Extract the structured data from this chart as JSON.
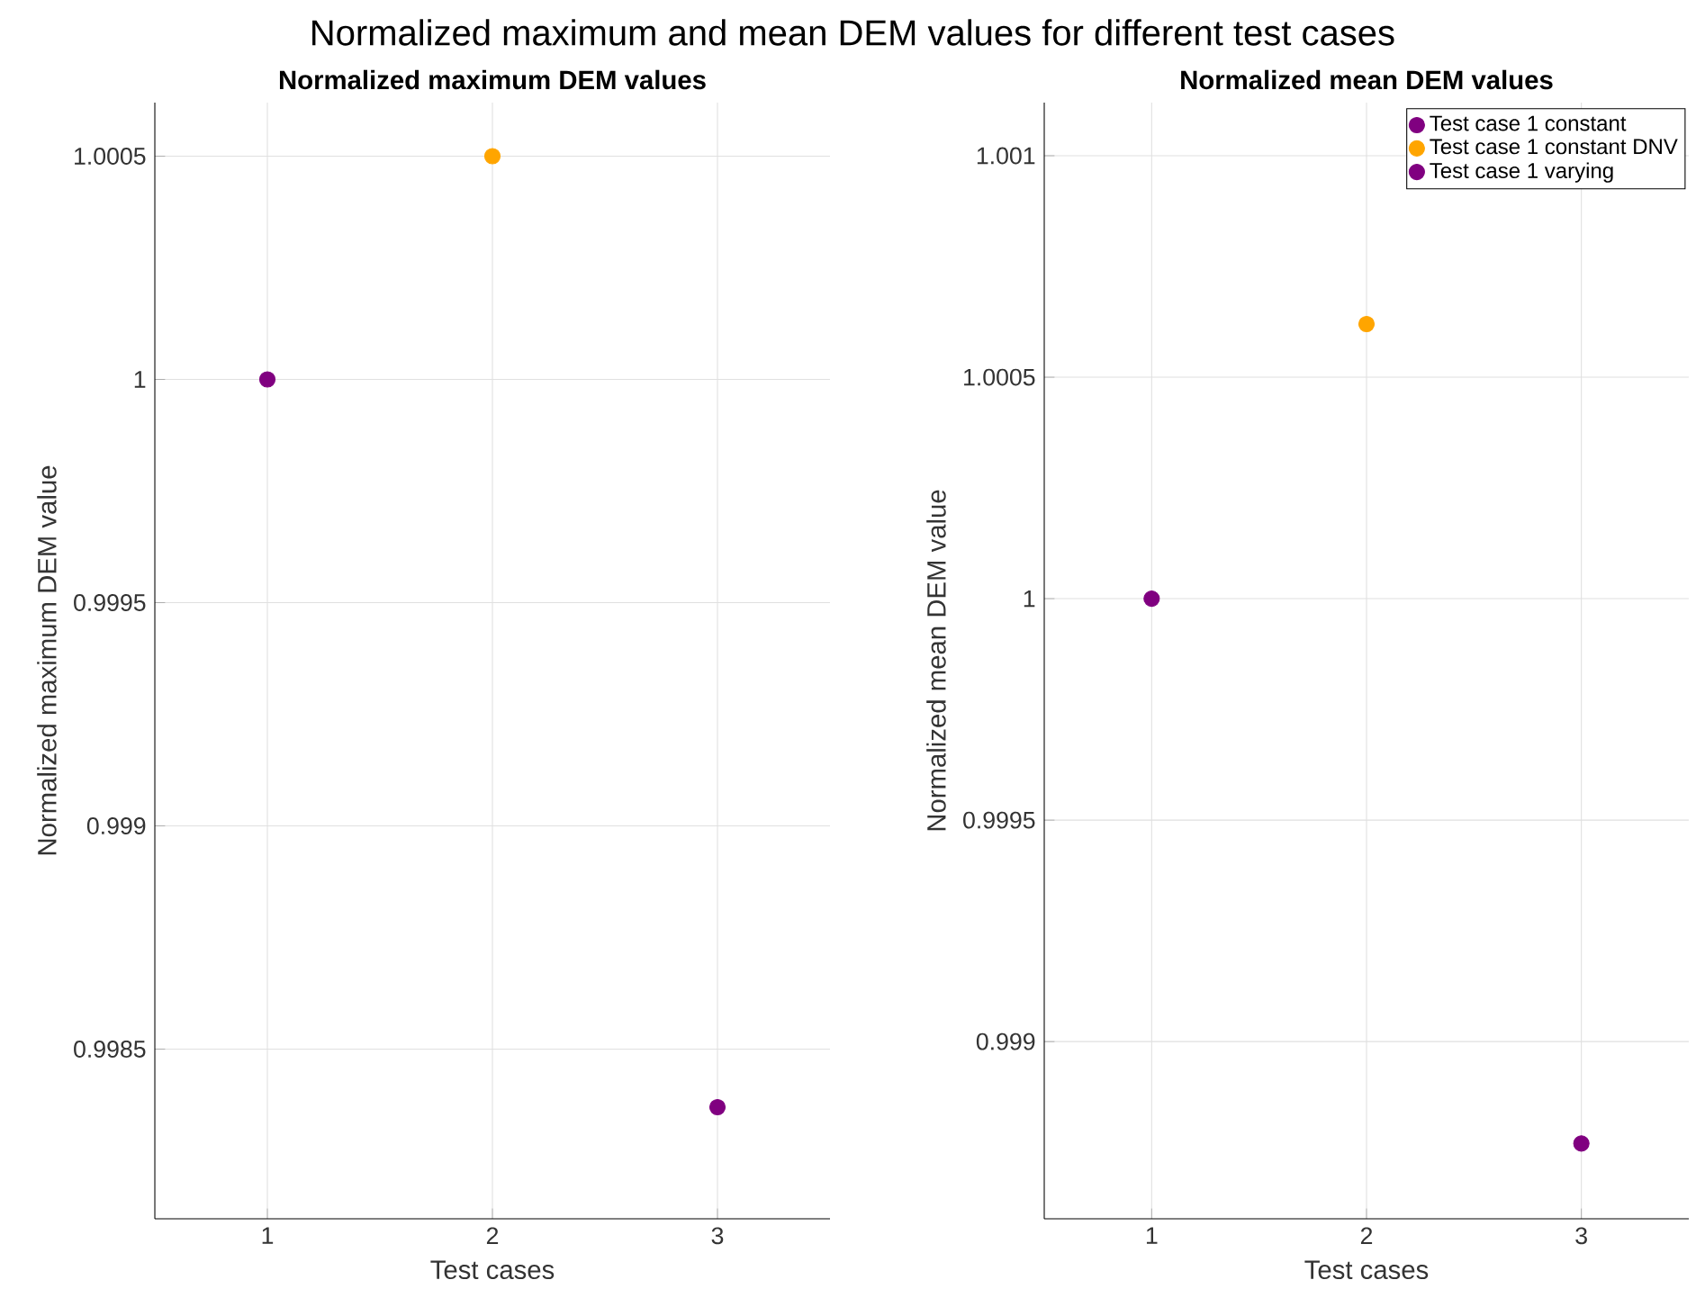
{
  "chart_data": [
    {
      "type": "scatter",
      "title": "Normalized maximum DEM values",
      "xlabel": "Test cases",
      "ylabel": "Normalized maximum DEM value",
      "annotations": [
        "Normalized maximum and mean DEM values for different test cases"
      ],
      "series": [
        {
          "color": "#800080",
          "x": [
            1
          ],
          "values": [
            1.0
          ]
        },
        {
          "color": "#ffa500",
          "x": [
            2
          ],
          "values": [
            1.0005
          ]
        },
        {
          "color": "#800080",
          "x": [
            3
          ],
          "values": [
            0.99837
          ]
        }
      ],
      "xlim": [
        0.5,
        3.5
      ],
      "xticks": [
        1,
        2,
        3
      ],
      "ylim": [
        0.99812,
        1.00062
      ],
      "yticks": [
        0.9985,
        0.999,
        0.9995,
        1,
        1.0005
      ],
      "grid": true,
      "legend": false
    },
    {
      "type": "scatter",
      "title": "Normalized mean DEM values",
      "xlabel": "Test cases",
      "ylabel": "Normalized mean DEM value",
      "series": [
        {
          "name": "Test case 1 constant",
          "color": "#800080",
          "x": [
            1
          ],
          "values": [
            1.0
          ]
        },
        {
          "name": "Test case 1 constant DNV",
          "color": "#ffa500",
          "x": [
            2
          ],
          "values": [
            1.00062
          ]
        },
        {
          "name": "Test case 1 varying",
          "color": "#800080",
          "x": [
            3
          ],
          "values": [
            0.99877
          ]
        }
      ],
      "xlim": [
        0.5,
        3.5
      ],
      "xticks": [
        1,
        2,
        3
      ],
      "ylim": [
        0.9986,
        1.00112
      ],
      "yticks": [
        0.999,
        0.9995,
        1,
        1.0005,
        1.001
      ],
      "grid": true,
      "legend": "top right"
    }
  ]
}
